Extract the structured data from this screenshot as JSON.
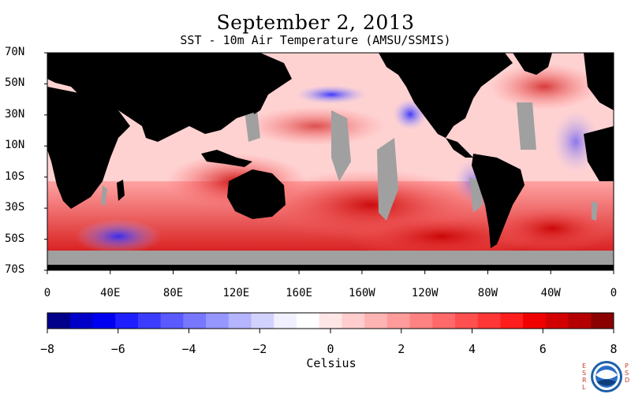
{
  "title": "September 2, 2013",
  "subtitle": "SST - 10m Air Temperature (AMSU/SSMIS)",
  "map": {
    "lat_labels": [
      "70N",
      "50N",
      "30N",
      "10N",
      "10S",
      "30S",
      "50S",
      "70S"
    ],
    "lon_labels": [
      "0",
      "40E",
      "80E",
      "120E",
      "160E",
      "160W",
      "120W",
      "80W",
      "40W",
      "0"
    ],
    "land_color": "#000000",
    "no_data_color": "#a0a0a0"
  },
  "colorbar": {
    "labels": [
      "−8",
      "−6",
      "−4",
      "−2",
      "0",
      "2",
      "4",
      "6",
      "8"
    ],
    "units": "Celsius",
    "colors": [
      "#00008b",
      "#0000c8",
      "#0000f0",
      "#1e1eff",
      "#3c3cff",
      "#5a5aff",
      "#7878ff",
      "#9696ff",
      "#b4b4ff",
      "#d2d2ff",
      "#f0f0ff",
      "#ffffff",
      "#ffe6e6",
      "#ffcdcd",
      "#ffb4b4",
      "#ff9b9b",
      "#ff8282",
      "#ff6969",
      "#ff5050",
      "#ff3737",
      "#ff1e1e",
      "#f00000",
      "#d20000",
      "#b40000",
      "#8b0000"
    ]
  },
  "logo": {
    "left_text": "ESRL",
    "right_text": "PSD",
    "name": "NOAA",
    "icon": "noaa-seal-icon"
  }
}
